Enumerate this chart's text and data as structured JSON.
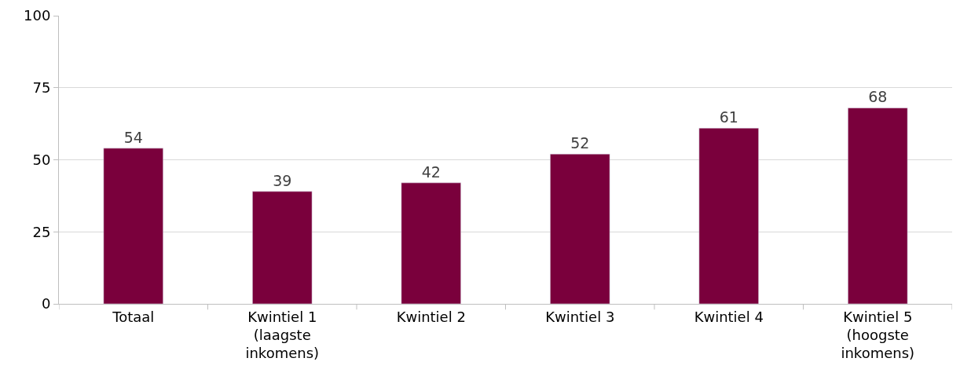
{
  "chart_data": {
    "type": "bar",
    "categories": [
      "Totaal",
      "Kwintiel 1\n(laagste\ninkomens)",
      "Kwintiel 2",
      "Kwintiel 3",
      "Kwintiel 4",
      "Kwintiel 5\n(hoogste\ninkomens)"
    ],
    "values": [
      54,
      39,
      42,
      52,
      61,
      68
    ],
    "color": "#7a003c",
    "ylim": [
      0,
      100
    ],
    "yticks": [
      0,
      25,
      50,
      75,
      100
    ],
    "grid": "y",
    "data_labels": true
  }
}
